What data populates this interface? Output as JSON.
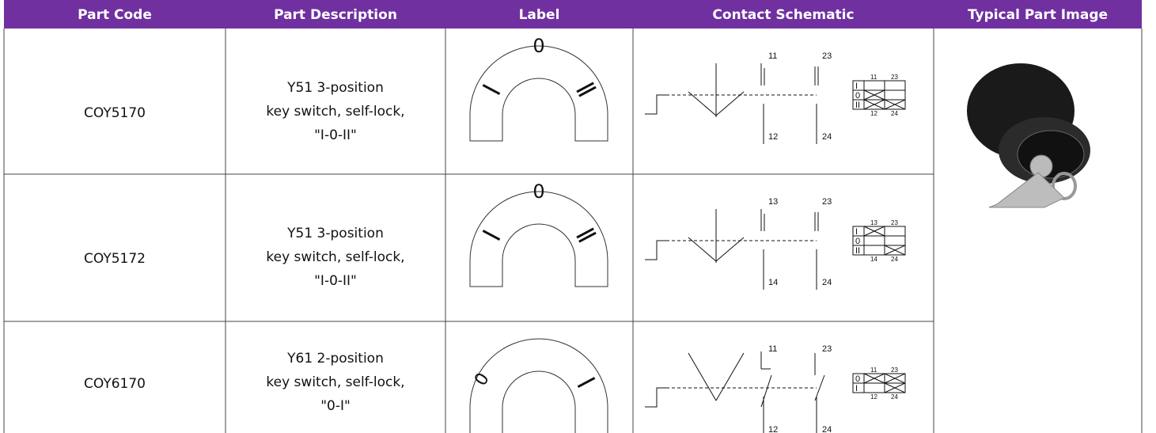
{
  "table": {
    "headers": [
      "Part Code",
      "Part Description",
      "Label",
      "Contact Schematic",
      "Typical Part Image"
    ],
    "rows": [
      {
        "code": "COY5170",
        "description": [
          "Y51 3-position",
          "key switch, self-lock,",
          "\"I-0-II\""
        ],
        "label_text": "0",
        "schematic": {
          "contacts": [
            "11",
            "12",
            "23",
            "24"
          ],
          "positions": [
            "I",
            "0",
            "II"
          ],
          "columns": [
            "11",
            "23"
          ],
          "foot": [
            "12",
            "24"
          ]
        }
      },
      {
        "code": "COY5172",
        "description": [
          "Y51 3-position",
          "key switch, self-lock,",
          "\"I-0-II\""
        ],
        "label_text": "0",
        "schematic": {
          "contacts": [
            "13",
            "14",
            "23",
            "24"
          ],
          "positions": [
            "I",
            "0",
            "II"
          ],
          "columns": [
            "13",
            "23"
          ],
          "foot": [
            "14",
            "24"
          ]
        }
      },
      {
        "code": "COY6170",
        "description": [
          "Y61 2-position",
          "key switch, self-lock,",
          "\"0-I\""
        ],
        "label_text": "0",
        "schematic": {
          "contacts": [
            "11",
            "12",
            "23",
            "24"
          ],
          "positions": [
            "0",
            "I"
          ],
          "columns": [
            "11",
            "23"
          ],
          "foot": [
            "12",
            "24"
          ]
        }
      }
    ]
  }
}
